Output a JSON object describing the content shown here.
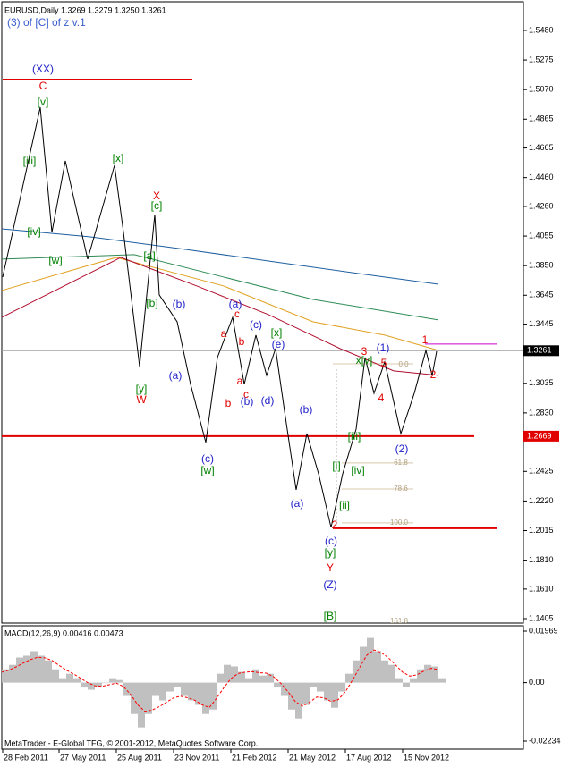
{
  "chart_data": [
    {
      "type": "line",
      "title": "EURUSD,Daily  1.3269 1.3279 1.3250 1.3261",
      "subtitle": "(3) of [C] of z v.1",
      "xlim": [
        0,
        583
      ],
      "ylim": [
        1.1374,
        1.5678
      ],
      "yticks": [
        {
          "value": 1.548,
          "label": "1.5480"
        },
        1.5275,
        {
          "value": 1.507,
          "label": "1.5070"
        },
        1.4865,
        1.4665,
        {
          "value": 1.446,
          "label": "1.4460"
        },
        {
          "value": 1.426,
          "label": "1.4260"
        },
        1.4055,
        {
          "value": 1.385,
          "label": "1.3850"
        },
        1.3645,
        1.3445,
        1.3035,
        {
          "value": 1.283,
          "label": "1.2830"
        },
        1.2425,
        {
          "value": 1.222,
          "label": "1.2220"
        },
        1.2015,
        {
          "value": 1.181,
          "label": "1.1810"
        },
        {
          "value": 1.161,
          "label": "1.1610"
        },
        1.1405
      ],
      "series": [
        {
          "color": "#1f5fa0",
          "x": [
            0,
            98,
            198,
            298,
            398,
            488
          ],
          "values": [
            1.4105,
            1.405,
            1.3969,
            1.3882,
            1.3796,
            1.3721
          ]
        },
        {
          "color": "#2e8b57",
          "x": [
            0,
            148,
            248,
            348,
            488
          ],
          "values": [
            1.3895,
            1.3926,
            1.3771,
            1.3616,
            1.3474
          ]
        },
        {
          "color": "#e0a020",
          "x": [
            0,
            128,
            248,
            348,
            428,
            488
          ],
          "values": [
            1.3678,
            1.3907,
            1.3709,
            1.3461,
            1.3369,
            1.3263
          ]
        },
        {
          "color": "#b01030",
          "x": [
            0,
            133,
            218,
            298,
            378,
            438,
            488
          ],
          "values": [
            1.3492,
            1.3907,
            1.3709,
            1.3511,
            1.3276,
            1.3121,
            1.309
          ]
        },
        {
          "color": "#000000",
          "x": [
            1,
            43,
            56,
            71,
            96,
            126,
            136,
            154,
            171,
            176,
            196,
            211,
            228,
            241,
            258,
            271,
            284,
            296,
            306,
            316,
            329,
            341,
            354,
            368,
            381,
            396,
            406,
            416,
            428,
            446,
            461,
            474,
            481,
            486
          ],
          "values": [
            1.3771,
            1.4947,
            1.4081,
            1.4576,
            1.3895,
            1.4545,
            1.4081,
            1.3152,
            1.4204,
            1.3647,
            1.3461,
            1.3028,
            1.2626,
            1.3214,
            1.3492,
            1.3028,
            1.3369,
            1.309,
            1.3276,
            1.2842,
            1.2297,
            1.2687,
            1.2409,
            1.2037,
            1.2409,
            1.2718,
            1.3214,
            1.2966,
            1.3183,
            1.2687,
            1.2966,
            1.3263,
            1.309,
            1.3257
          ]
        }
      ],
      "lines": [
        {
          "value": 1.3261,
          "xlim": [
            0,
            583
          ],
          "color": "#a0a0a0"
        },
        {
          "value": 1.5139,
          "xlim": [
            1,
            213
          ],
          "color": "#e00000"
        },
        {
          "value": 1.2669,
          "xlim": [
            0,
            528
          ],
          "color": "#e00000"
        },
        {
          "value": 1.2031,
          "xlim": [
            370,
            554
          ],
          "color": "#e00000"
        },
        {
          "value": 1.3307,
          "xlim": [
            473,
            554
          ],
          "color": "#cc00cc"
        },
        {
          "value": 1.317,
          "xlim": [
            370,
            460
          ],
          "color": "#d8c8a8"
        },
        {
          "value": 1.2483,
          "xlim": [
            380,
            460
          ],
          "color": "#d8c8a8"
        },
        {
          "value": 1.2303,
          "xlim": [
            380,
            460
          ],
          "color": "#d8c8a8"
        },
        {
          "value": 1.2068,
          "xlim": [
            380,
            460
          ],
          "color": "#d8c8a8"
        }
      ],
      "price_labels": [
        {
          "value": 1.3261,
          "color": "#000000"
        },
        {
          "value": 1.2669,
          "color": "#e00000"
        }
      ],
      "annotations": [
        {
          "text": "(XX)",
          "color": "#1e1ec8"
        },
        {
          "text": "C",
          "color": "#e00000"
        },
        {
          "text": "[v]",
          "color": "#008000"
        },
        {
          "text": "[iii]",
          "color": "#008000"
        },
        {
          "text": "[iv]",
          "color": "#008000"
        },
        {
          "text": "[w]",
          "color": "#008000"
        },
        {
          "text": "[x]",
          "color": "#008000"
        },
        {
          "text": "X",
          "color": "#e00000"
        },
        {
          "text": "[c]",
          "color": "#008000"
        },
        {
          "text": "[a]",
          "color": "#008000"
        },
        {
          "text": "[b]",
          "color": "#008000"
        },
        {
          "text": "(b)",
          "color": "#1e1ec8"
        },
        {
          "text": "(a)",
          "color": "#1e1ec8"
        },
        {
          "text": "[y]",
          "color": "#008000"
        },
        {
          "text": "W",
          "color": "#e00000"
        },
        {
          "text": "(c)",
          "color": "#1e1ec8"
        },
        {
          "text": "[w]",
          "color": "#008000"
        },
        {
          "text": "(a)",
          "color": "#1e1ec8"
        },
        {
          "text": "c",
          "color": "#e00000"
        },
        {
          "text": "a",
          "color": "#e00000"
        },
        {
          "text": "b",
          "color": "#e00000"
        },
        {
          "text": "(c)",
          "color": "#1e1ec8"
        },
        {
          "text": "[x]",
          "color": "#008000"
        },
        {
          "text": "(e)",
          "color": "#1e1ec8"
        },
        {
          "text": "a",
          "color": "#e00000"
        },
        {
          "text": "c",
          "color": "#e00000"
        },
        {
          "text": "b",
          "color": "#e00000"
        },
        {
          "text": "(b)",
          "color": "#1e1ec8"
        },
        {
          "text": "(d)",
          "color": "#1e1ec8"
        },
        {
          "text": "(b)",
          "color": "#1e1ec8"
        },
        {
          "text": "(a)",
          "color": "#1e1ec8"
        },
        {
          "text": "3",
          "color": "#e00000"
        },
        {
          "text": "x[v]",
          "color": "#008000"
        },
        {
          "text": "(1)",
          "color": "#1e1ec8"
        },
        {
          "text": "5",
          "color": "#e00000"
        },
        {
          "text": "4",
          "color": "#e00000"
        },
        {
          "text": "[iii]",
          "color": "#008000"
        },
        {
          "text": "[i]",
          "color": "#008000"
        },
        {
          "text": "[iv]",
          "color": "#008000"
        },
        {
          "text": "[ii]",
          "color": "#008000"
        },
        {
          "text": "(2)",
          "color": "#1e1ec8"
        },
        {
          "text": "1",
          "color": "#e00000"
        },
        {
          "text": "2",
          "color": "#e00000"
        },
        {
          "text": "2",
          "color": "#e00000"
        },
        {
          "text": "(c)",
          "color": "#1e1ec8"
        },
        {
          "text": "[y]",
          "color": "#008000"
        },
        {
          "text": "Y",
          "color": "#e00000"
        },
        {
          "text": "(Z)",
          "color": "#1e1ec8"
        },
        {
          "text": "[B]",
          "color": "#008000"
        },
        {
          "text": "0.0",
          "color": "#b0a080"
        },
        {
          "text": "61.8",
          "color": "#b0a080"
        },
        {
          "text": "78.6",
          "color": "#b0a080"
        },
        {
          "text": "100.0",
          "color": "#b0a080"
        },
        {
          "text": "161.8",
          "color": "#b0a080"
        }
      ]
    },
    {
      "type": "macd",
      "title": "MACD(12,26,9) 0.00416 0.00473",
      "footer": "MetaTrader - E-Global TFG, © 2001-2012, MetaQuotes Software Corp.",
      "xlim": [
        0,
        583
      ],
      "ylim": [
        -0.02542,
        0.02174
      ],
      "yticks": [
        0.01969,
        {
          "value": 0,
          "label": "0.00"
        },
        -0.02234
      ],
      "xticks": [
        {
          "value": 1,
          "label": "28 Feb 2011"
        },
        {
          "value": 64,
          "label": "27 May 2011"
        },
        {
          "value": 128,
          "label": "25 Aug 2011"
        },
        {
          "value": 192,
          "label": "23 Nov 2011"
        },
        {
          "value": 256,
          "label": "21 Feb 2012"
        },
        {
          "value": 320,
          "label": "21 May 2012"
        },
        {
          "value": 384,
          "label": "17 Aug 2012"
        },
        {
          "value": 448,
          "label": "15 Nov 2012"
        }
      ],
      "x": [
        0,
        8,
        16,
        24,
        32,
        40,
        48,
        56,
        64,
        72,
        80,
        88,
        96,
        104,
        112,
        120,
        128,
        136,
        144,
        152,
        160,
        168,
        176,
        184,
        192,
        200,
        208,
        216,
        224,
        232,
        240,
        248,
        256,
        264,
        272,
        280,
        288,
        296,
        304,
        312,
        320,
        328,
        336,
        344,
        352,
        360,
        368,
        376,
        384,
        392,
        400,
        408,
        416,
        424,
        432,
        440,
        448,
        456,
        464,
        472,
        480,
        488
      ],
      "series": [
        {
          "color": "#c0c0c0",
          "values": [
            0.0051,
            0.0068,
            0.0096,
            0.0103,
            0.012,
            0.0103,
            0.0085,
            0.0051,
            0.0017,
            0.0034,
            0.0017,
            -0.0017,
            -0.0027,
            -0.0017,
            0,
            0.0017,
            0.001,
            -0.0051,
            -0.012,
            -0.0171,
            -0.012,
            -0.0051,
            -0.0068,
            -0.0034,
            -0.0017,
            -0.0051,
            -0.0068,
            -0.0085,
            -0.012,
            -0.0103,
            0.0034,
            0.0068,
            0.0062,
            0.0041,
            0.0017,
            0.0051,
            0.0027,
            0.0034,
            -0.0017,
            -0.0051,
            -0.0103,
            -0.0137,
            -0.0085,
            -0.0017,
            -0.0034,
            -0.0068,
            -0.0096,
            -0.0034,
            0.0034,
            0.0085,
            0.0137,
            0.0171,
            0.012,
            0.0085,
            0.0068,
            0.0017,
            -0.0017,
            0.0017,
            0.0051,
            0.0068,
            0.0062,
            0.0017
          ]
        },
        {
          "color": "#ff0000",
          "values": [
            0.004,
            0.0048,
            0.006,
            0.0075,
            0.0088,
            0.0097,
            0.0095,
            0.0085,
            0.0066,
            0.0048,
            0.0034,
            0.0017,
            0,
            -0.0012,
            -0.0014,
            -0.0008,
            -0.0002,
            -0.0015,
            -0.0045,
            -0.0085,
            -0.011,
            -0.0105,
            -0.0092,
            -0.0075,
            -0.0058,
            -0.0052,
            -0.0058,
            -0.0068,
            -0.0085,
            -0.0095,
            -0.006,
            -0.002,
            0.0015,
            0.0035,
            0.004,
            0.0042,
            0.0038,
            0.0036,
            0.0022,
            -0.0003,
            -0.0035,
            -0.0072,
            -0.009,
            -0.0075,
            -0.0055,
            -0.0058,
            -0.0072,
            -0.0065,
            -0.0035,
            0.001,
            0.0058,
            0.0105,
            0.0125,
            0.0115,
            0.0095,
            0.0068,
            0.004,
            0.0025,
            0.003,
            0.0045,
            0.0055,
            0.005
          ]
        }
      ]
    }
  ]
}
